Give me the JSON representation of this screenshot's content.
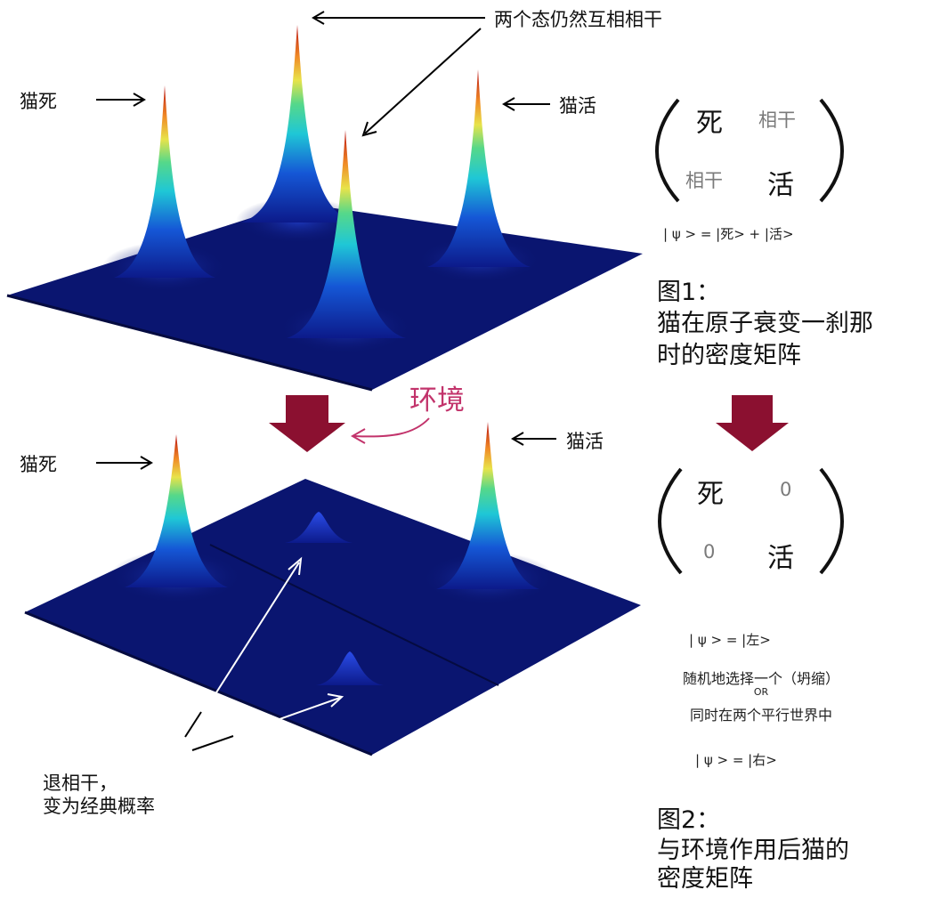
{
  "colors": {
    "plane": "#0a1570",
    "arrow_red": "#8b1030",
    "env_text": "#c2336b",
    "off_diag": "#7a7a7a",
    "annotation_arrow": "#ffffff"
  },
  "figure1": {
    "label_dead": "猫死",
    "label_alive": "猫活",
    "label_coherent": "两个态仍然互相相干",
    "matrix": {
      "tl": "死",
      "tr": "相干",
      "bl": "相干",
      "br": "活"
    },
    "equation": "| ψ > = |死> + |活>",
    "caption_title": "图1：",
    "caption_line1": "猫在原子衰变一刹那",
    "caption_line2": "时的密度矩阵"
  },
  "environment_label": "环境",
  "figure2": {
    "label_dead": "猫死",
    "label_alive": "猫活",
    "decoherence_line1": "退相干，",
    "decoherence_line2": "变为经典概率",
    "matrix": {
      "tl": "死",
      "tr": "0",
      "bl": "0",
      "br": "活"
    },
    "equation_left": "| ψ > = |左>",
    "note_line1": "随机地选择一个（坍缩）",
    "note_or": "OR",
    "note_line2": "同时在两个平行世界中",
    "equation_right": "| ψ > = |右>",
    "caption_title": "图2：",
    "caption_line1": "与环境作用后猫的",
    "caption_line2": "密度矩阵"
  }
}
